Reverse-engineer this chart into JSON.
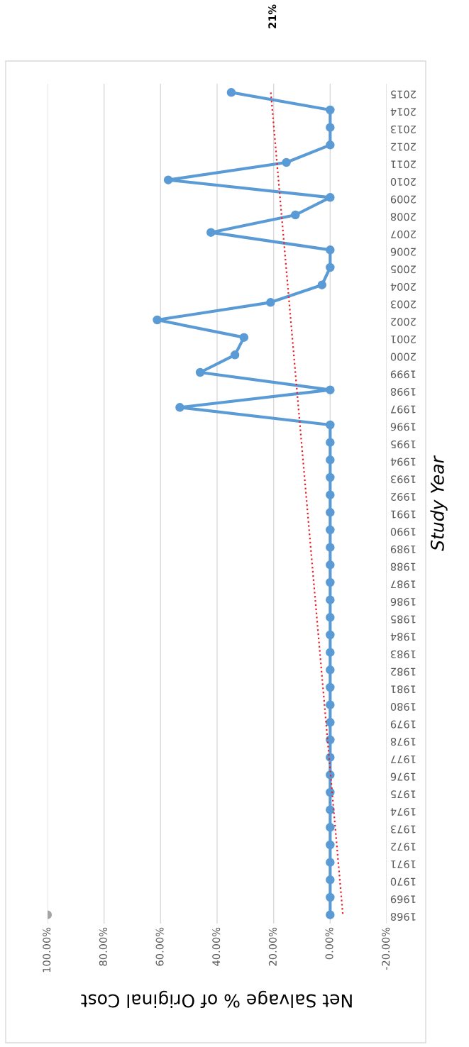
{
  "chart_data": {
    "type": "line",
    "orientation": "horizontal",
    "xlabel": "Net Salvage % of Original Cost",
    "ylabel": "Study Year",
    "categories": [
      "2015",
      "2014",
      "2013",
      "2012",
      "2011",
      "2010",
      "2009",
      "2008",
      "2007",
      "2006",
      "2005",
      "2004",
      "2003",
      "2002",
      "2001",
      "2000",
      "1999",
      "1998",
      "1997",
      "1996",
      "1995",
      "1994",
      "1993",
      "1992",
      "1991",
      "1990",
      "1989",
      "1988",
      "1987",
      "1986",
      "1985",
      "1984",
      "1983",
      "1982",
      "1981",
      "1980",
      "1979",
      "1978",
      "1977",
      "1976",
      "1975",
      "1974",
      "1973",
      "1972",
      "1971",
      "1970",
      "1969",
      "1968"
    ],
    "series": [
      {
        "color": "#5b9bd5",
        "marker": "circle",
        "line_style": "solid",
        "values": [
          35,
          0,
          0,
          0,
          15.5,
          57.3,
          0,
          12.3,
          42.2,
          0,
          0,
          2.9,
          21.1,
          61.2,
          30.5,
          33.7,
          46,
          0,
          53.2,
          0,
          0,
          0,
          0,
          0,
          0,
          0,
          0,
          0,
          0,
          0,
          0,
          0,
          0,
          0,
          0,
          0,
          0,
          0,
          0,
          0,
          0,
          0,
          0,
          0,
          0,
          0,
          0,
          0
        ]
      },
      {
        "type": "line",
        "color": "#e8202a",
        "marker": "none",
        "line_style": "dotted",
        "values": [
          21,
          null,
          null,
          null,
          null,
          null,
          null,
          null,
          null,
          null,
          null,
          null,
          null,
          null,
          null,
          null,
          null,
          null,
          null,
          null,
          null,
          null,
          null,
          null,
          null,
          null,
          null,
          null,
          null,
          null,
          null,
          null,
          null,
          null,
          null,
          null,
          null,
          null,
          null,
          null,
          null,
          null,
          null,
          null,
          null,
          null,
          null,
          -4.5
        ]
      },
      {
        "type": "scatter",
        "color": "#a5a5a5",
        "marker": "circle",
        "values": [
          null,
          null,
          null,
          null,
          null,
          null,
          null,
          null,
          null,
          null,
          null,
          null,
          null,
          null,
          null,
          null,
          null,
          null,
          null,
          null,
          null,
          null,
          null,
          null,
          null,
          null,
          null,
          null,
          null,
          null,
          null,
          null,
          null,
          null,
          null,
          null,
          null,
          null,
          null,
          null,
          null,
          null,
          null,
          null,
          null,
          null,
          null,
          100
        ]
      }
    ],
    "xlim": [
      100,
      -20
    ],
    "xticks": [
      {
        "value": 100,
        "label": "100.00%"
      },
      {
        "value": 80,
        "label": "80.00%"
      },
      {
        "value": 60,
        "label": "60.00%"
      },
      {
        "value": 40,
        "label": "40.00%"
      },
      {
        "value": 20,
        "label": "20.00%"
      },
      {
        "value": 0,
        "label": "0.00%"
      },
      {
        "value": -20,
        "label": "-20.00%"
      }
    ],
    "grid": "x",
    "annotations": [
      "21%"
    ]
  }
}
